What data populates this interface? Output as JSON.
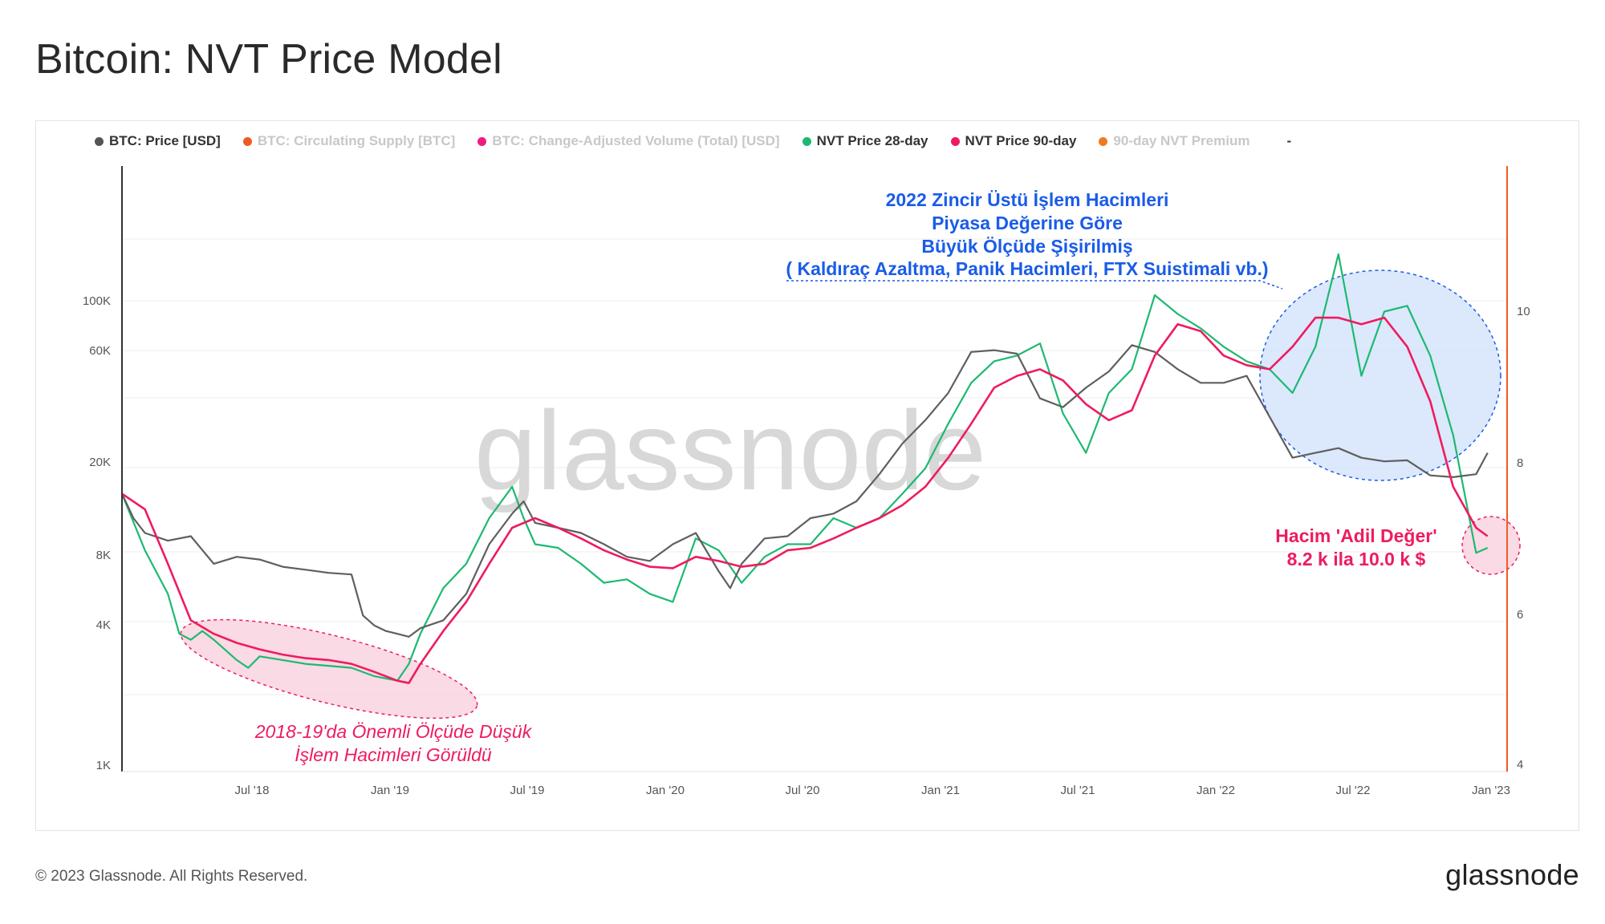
{
  "title": "Bitcoin: NVT Price Model",
  "legend": [
    {
      "label": "BTC: Price [USD]",
      "color": "#555555",
      "muted": false
    },
    {
      "label": "BTC: Circulating Supply [BTC]",
      "color": "#f05a22",
      "muted": true
    },
    {
      "label": "BTC: Change-Adjusted Volume (Total) [USD]",
      "color": "#ee1c7e",
      "muted": true
    },
    {
      "label": "NVT Price 28-day",
      "color": "#1db971",
      "muted": false
    },
    {
      "label": "NVT Price 90-day",
      "color": "#ee1c5e",
      "muted": false
    },
    {
      "label": "90-day NVT Premium",
      "color": "#f07a22",
      "muted": true
    },
    {
      "label": "-",
      "color": "",
      "muted": false
    }
  ],
  "watermark": "glassnode",
  "annotations": {
    "top_blue": [
      "2022 Zincir Üstü İşlem Hacimleri",
      "Piyasa Değerine Göre",
      "Büyük Ölçüde Şişirilmiş",
      "( Kaldıraç Azaltma, Panik Hacimleri, FTX Suistimali vb.)"
    ],
    "right_red": [
      "Hacim 'Adil Değer'",
      "8.2 k ila 10.0 k $"
    ],
    "left_red": [
      "2018-19'da Önemli Ölçüde Düşük",
      "İşlem Hacimleri Görüldü"
    ]
  },
  "footer": {
    "copyright": "© 2023 Glassnode. All Rights Reserved.",
    "logo": "glassnode"
  },
  "colors": {
    "price": "#5f5f5f",
    "nvt28": "#1db971",
    "nvt90": "#ee1c5e",
    "right_axis": "#f05a22",
    "blue_fill": "#d6e4fb",
    "blue_stroke": "#1a5ce8",
    "pink_fill": "#f9d3df",
    "pink_stroke": "#ee1c5e"
  },
  "chart_data": {
    "type": "line",
    "y_scale": "log",
    "x_ticks": [
      "Jul '18",
      "Jan '19",
      "Jul '19",
      "Jan '20",
      "Jul '20",
      "Jan '21",
      "Jul '21",
      "Jan '22",
      "Jul '22",
      "Jan '23"
    ],
    "y_left_ticks": [
      "1K",
      "4K",
      "8K",
      "20K",
      "60K",
      "100K"
    ],
    "y_right_ticks": [
      "4",
      "6",
      "8",
      "10"
    ],
    "series": [
      {
        "name": "BTC: Price [USD]",
        "key": "price",
        "t": [
          0,
          0.5,
          1,
          2,
          3,
          4,
          5,
          6,
          7,
          8,
          9,
          10,
          10.5,
          11,
          11.5,
          12,
          12.5,
          13,
          14,
          15,
          16,
          17,
          17.5,
          18,
          19,
          20,
          21,
          22,
          23,
          24,
          25,
          26,
          26.5,
          27,
          28,
          29,
          30,
          31,
          32,
          33,
          34,
          35,
          36,
          37,
          38,
          39,
          40,
          41,
          42,
          43,
          44,
          45,
          46,
          47,
          48,
          49,
          50,
          51,
          52,
          53,
          54,
          55,
          56,
          57,
          58,
          59,
          59.5
        ],
        "v": [
          14000,
          11000,
          9500,
          8800,
          9200,
          7000,
          7500,
          7300,
          6800,
          6600,
          6400,
          6300,
          4200,
          3800,
          3600,
          3500,
          3400,
          3700,
          4000,
          5200,
          8500,
          11500,
          13000,
          10500,
          10000,
          9500,
          8500,
          7500,
          7200,
          8500,
          9500,
          6500,
          5500,
          7000,
          9000,
          9200,
          11000,
          11500,
          13000,
          17000,
          23000,
          29000,
          38000,
          57000,
          58000,
          56000,
          36000,
          33000,
          40000,
          47000,
          61000,
          57000,
          48000,
          42000,
          42000,
          45000,
          30000,
          20000,
          21000,
          22000,
          20000,
          19300,
          19500,
          16800,
          16500,
          17000,
          21000
        ]
      },
      {
        "name": "NVT Price 28-day",
        "key": "nvt28",
        "t": [
          0,
          1,
          2,
          2.5,
          3,
          3.5,
          4,
          5,
          5.5,
          6,
          7,
          8,
          9,
          10,
          11,
          12,
          12.5,
          13,
          14,
          15,
          16,
          17,
          17.5,
          18,
          19,
          20,
          21,
          22,
          23,
          24,
          25,
          26,
          27,
          28,
          29,
          30,
          31,
          32,
          33,
          34,
          35,
          36,
          37,
          38,
          39,
          40,
          41,
          42,
          43,
          44,
          45,
          46,
          47,
          48,
          49,
          50,
          51,
          52,
          53,
          54,
          55,
          56,
          57,
          58,
          59,
          59.5
        ],
        "v": [
          14000,
          8000,
          5200,
          3500,
          3300,
          3600,
          3300,
          2700,
          2500,
          2800,
          2700,
          2600,
          2550,
          2500,
          2300,
          2200,
          2600,
          3500,
          5500,
          7000,
          11000,
          15000,
          11000,
          8500,
          8200,
          7000,
          5800,
          6000,
          5200,
          4800,
          9000,
          8000,
          5800,
          7500,
          8500,
          8500,
          11000,
          10000,
          11000,
          14000,
          18000,
          28000,
          42000,
          52000,
          55000,
          62000,
          31000,
          21000,
          38000,
          48000,
          100000,
          83000,
          72000,
          60000,
          52000,
          48000,
          38000,
          60000,
          150000,
          45000,
          85000,
          90000,
          55000,
          25000,
          7800,
          8200
        ]
      },
      {
        "name": "NVT Price 90-day",
        "key": "nvt90",
        "t": [
          0,
          1,
          2,
          3,
          4,
          5,
          6,
          7,
          8,
          9,
          10,
          11,
          12,
          12.5,
          13,
          14,
          15,
          16,
          17,
          18,
          19,
          20,
          21,
          22,
          23,
          24,
          25,
          26,
          27,
          28,
          29,
          30,
          31,
          32,
          33,
          34,
          35,
          36,
          37,
          38,
          39,
          40,
          41,
          42,
          43,
          44,
          45,
          46,
          47,
          48,
          49,
          50,
          51,
          52,
          53,
          54,
          55,
          56,
          57,
          58,
          59,
          59.5
        ],
        "v": [
          14000,
          12000,
          7000,
          4000,
          3500,
          3200,
          3000,
          2850,
          2750,
          2700,
          2600,
          2400,
          2200,
          2150,
          2600,
          3600,
          4800,
          7000,
          10000,
          11000,
          10000,
          9000,
          8000,
          7300,
          6800,
          6700,
          7500,
          7200,
          6800,
          7000,
          8000,
          8200,
          9000,
          10000,
          11000,
          12500,
          15000,
          20000,
          28000,
          40000,
          45000,
          48000,
          43000,
          34000,
          29000,
          32000,
          55000,
          75000,
          70000,
          55000,
          50000,
          48000,
          60000,
          80000,
          80000,
          75000,
          80000,
          60000,
          35000,
          15000,
          10000,
          9200
        ]
      }
    ]
  }
}
